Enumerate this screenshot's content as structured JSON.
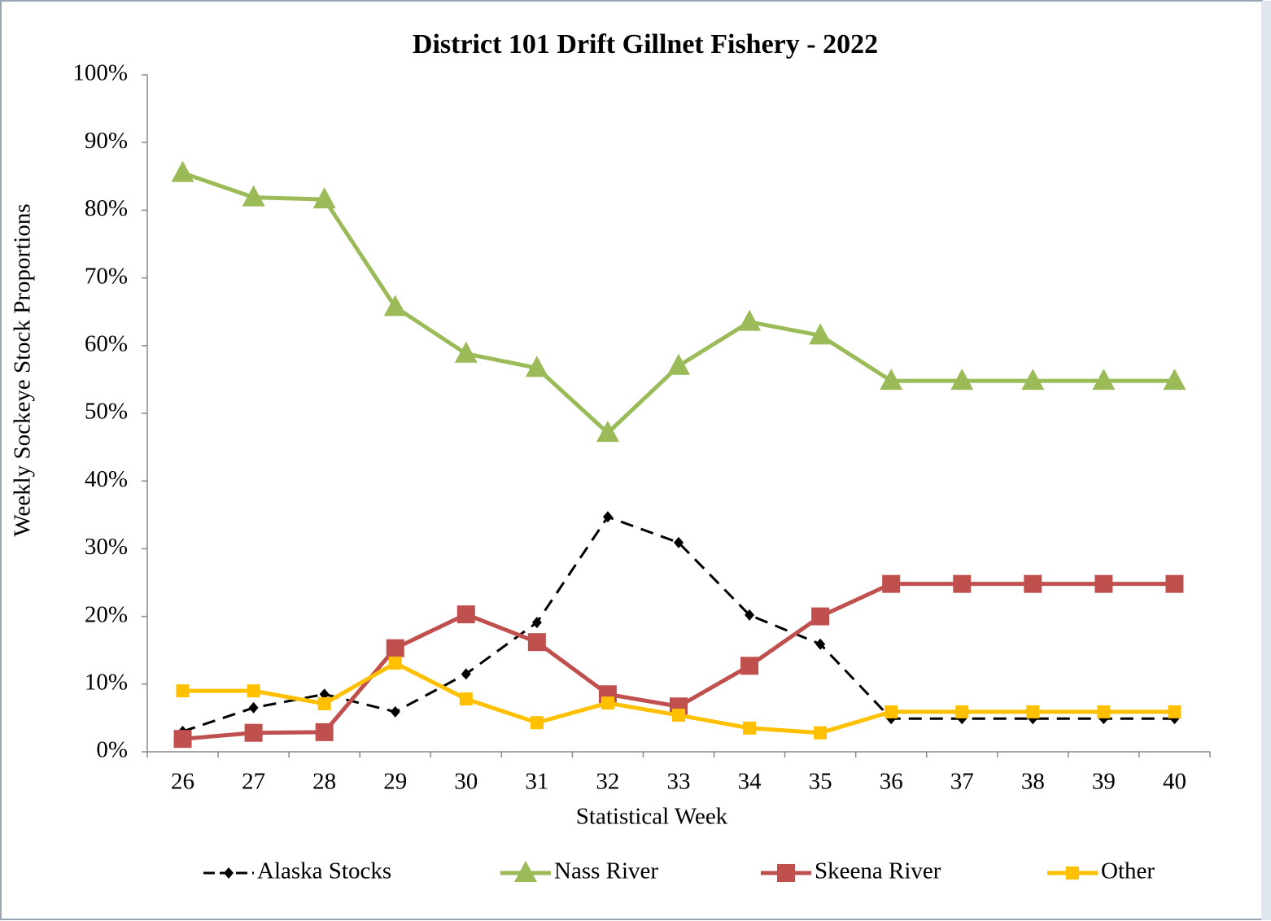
{
  "chart_data": {
    "type": "line",
    "title": "District 101 Drift Gillnet Fishery - 2022",
    "x_label": "Statistical Week",
    "y_label": "Weekly Sockeye  Stock Proportions",
    "categories": [
      "26",
      "27",
      "28",
      "29",
      "30",
      "31",
      "32",
      "33",
      "34",
      "35",
      "36",
      "37",
      "38",
      "39",
      "40"
    ],
    "ylim": [
      0,
      100
    ],
    "yticks": [
      {
        "value": 0,
        "label": "0%"
      },
      {
        "value": 10,
        "label": "10%"
      },
      {
        "value": 20,
        "label": "20%"
      },
      {
        "value": 30,
        "label": "30%"
      },
      {
        "value": 40,
        "label": "40%"
      },
      {
        "value": 50,
        "label": "50%"
      },
      {
        "value": 60,
        "label": "60%"
      },
      {
        "value": 70,
        "label": "70%"
      },
      {
        "value": 80,
        "label": "80%"
      },
      {
        "value": 90,
        "label": "90%"
      },
      {
        "value": 100,
        "label": "100%"
      }
    ],
    "grid": false,
    "legend": "bottom",
    "series": [
      {
        "name": "Alaska Stocks",
        "color": "#000000",
        "marker": "diamond",
        "dashed": true,
        "values": [
          3.0,
          6.5,
          8.5,
          5.9,
          11.5,
          19.1,
          34.7,
          30.9,
          20.2,
          15.9,
          4.9,
          4.9,
          4.9,
          4.9,
          4.9
        ]
      },
      {
        "name": "Nass River",
        "color": "#9bbb59",
        "marker": "triangle",
        "dashed": false,
        "values": [
          85.5,
          81.9,
          81.6,
          65.7,
          58.8,
          56.7,
          47.1,
          57.0,
          63.5,
          61.5,
          54.8,
          54.8,
          54.8,
          54.8,
          54.8
        ]
      },
      {
        "name": "Skeena River",
        "color": "#c0504d",
        "marker": "square",
        "dashed": false,
        "values": [
          1.9,
          2.8,
          2.9,
          15.3,
          20.3,
          16.2,
          8.5,
          6.7,
          12.7,
          20.0,
          24.8,
          24.8,
          24.8,
          24.8,
          24.8
        ]
      },
      {
        "name": "Other",
        "color": "#ffc000",
        "marker": "smallsquare",
        "dashed": false,
        "values": [
          9.0,
          9.0,
          7.1,
          13.1,
          7.8,
          4.3,
          7.2,
          5.4,
          3.5,
          2.8,
          5.9,
          5.9,
          5.9,
          5.9,
          5.9
        ]
      }
    ]
  }
}
